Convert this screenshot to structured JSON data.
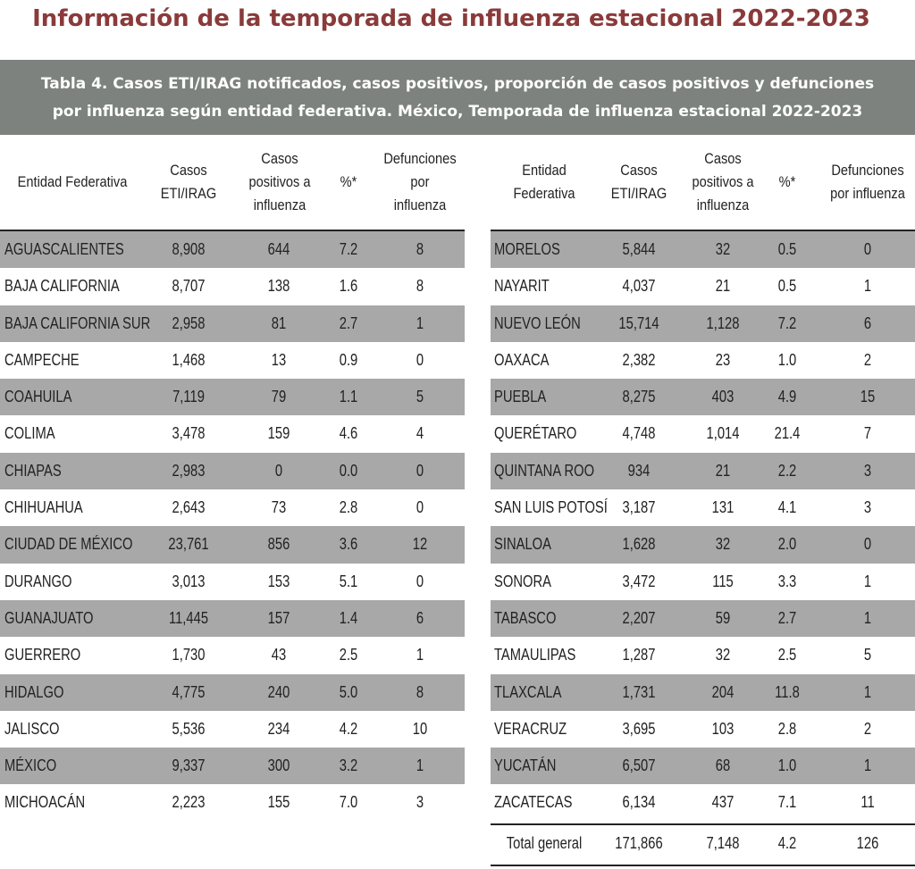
{
  "page_title": "Información de la temporada de influenza estacional 2022-2023",
  "table_caption": {
    "line1": "Tabla 4. Casos ETI/IRAG notificados, casos positivos, proporción de casos positivos  y defunciones",
    "line2": "por influenza según entidad federativa. México, Temporada de influenza estacional 2022-2023"
  },
  "left_headers": {
    "entidad": "Entidad Federativa",
    "casos": "Casos ETI/IRAG",
    "positivos": "Casos positivos a influenza",
    "pct": "%*",
    "defunciones": "Defunciones por influenza"
  },
  "right_headers": {
    "entidad": "Entidad Federativa",
    "casos": "Casos ETI/IRAG",
    "positivos": "Casos positivos a influenza",
    "pct": "%*",
    "defunciones": "Defunciones por influenza"
  },
  "left_rows": [
    {
      "entidad": "AGUASCALIENTES",
      "casos": "8,908",
      "positivos": "644",
      "pct": "7.2",
      "defunciones": "8"
    },
    {
      "entidad": "BAJA CALIFORNIA",
      "casos": "8,707",
      "positivos": "138",
      "pct": "1.6",
      "defunciones": "8"
    },
    {
      "entidad": "BAJA CALIFORNIA SUR",
      "casos": "2,958",
      "positivos": "81",
      "pct": "2.7",
      "defunciones": "1"
    },
    {
      "entidad": "CAMPECHE",
      "casos": "1,468",
      "positivos": "13",
      "pct": "0.9",
      "defunciones": "0"
    },
    {
      "entidad": "COAHUILA",
      "casos": "7,119",
      "positivos": "79",
      "pct": "1.1",
      "defunciones": "5"
    },
    {
      "entidad": "COLIMA",
      "casos": "3,478",
      "positivos": "159",
      "pct": "4.6",
      "defunciones": "4"
    },
    {
      "entidad": "CHIAPAS",
      "casos": "2,983",
      "positivos": "0",
      "pct": "0.0",
      "defunciones": "0"
    },
    {
      "entidad": "CHIHUAHUA",
      "casos": "2,643",
      "positivos": "73",
      "pct": "2.8",
      "defunciones": "0"
    },
    {
      "entidad": "CIUDAD DE MÉXICO",
      "casos": "23,761",
      "positivos": "856",
      "pct": "3.6",
      "defunciones": "12"
    },
    {
      "entidad": "DURANGO",
      "casos": "3,013",
      "positivos": "153",
      "pct": "5.1",
      "defunciones": "0"
    },
    {
      "entidad": "GUANAJUATO",
      "casos": "11,445",
      "positivos": "157",
      "pct": "1.4",
      "defunciones": "6"
    },
    {
      "entidad": "GUERRERO",
      "casos": "1,730",
      "positivos": "43",
      "pct": "2.5",
      "defunciones": "1"
    },
    {
      "entidad": "HIDALGO",
      "casos": "4,775",
      "positivos": "240",
      "pct": "5.0",
      "defunciones": "8"
    },
    {
      "entidad": "JALISCO",
      "casos": "5,536",
      "positivos": "234",
      "pct": "4.2",
      "defunciones": "10"
    },
    {
      "entidad": "MÉXICO",
      "casos": "9,337",
      "positivos": "300",
      "pct": "3.2",
      "defunciones": "1"
    },
    {
      "entidad": "MICHOACÁN",
      "casos": "2,223",
      "positivos": "155",
      "pct": "7.0",
      "defunciones": "3"
    }
  ],
  "right_rows": [
    {
      "entidad": "MORELOS",
      "casos": "5,844",
      "positivos": "32",
      "pct": "0.5",
      "defunciones": "0"
    },
    {
      "entidad": "NAYARIT",
      "casos": "4,037",
      "positivos": "21",
      "pct": "0.5",
      "defunciones": "1"
    },
    {
      "entidad": "NUEVO LEÓN",
      "casos": "15,714",
      "positivos": "1,128",
      "pct": "7.2",
      "defunciones": "6"
    },
    {
      "entidad": "OAXACA",
      "casos": "2,382",
      "positivos": "23",
      "pct": "1.0",
      "defunciones": "2"
    },
    {
      "entidad": "PUEBLA",
      "casos": "8,275",
      "positivos": "403",
      "pct": "4.9",
      "defunciones": "15"
    },
    {
      "entidad": "QUERÉTARO",
      "casos": "4,748",
      "positivos": "1,014",
      "pct": "21.4",
      "defunciones": "7"
    },
    {
      "entidad": "QUINTANA ROO",
      "casos": "934",
      "positivos": "21",
      "pct": "2.2",
      "defunciones": "3"
    },
    {
      "entidad": "SAN LUIS POTOSÍ",
      "casos": "3,187",
      "positivos": "131",
      "pct": "4.1",
      "defunciones": "3"
    },
    {
      "entidad": "SINALOA",
      "casos": "1,628",
      "positivos": "32",
      "pct": "2.0",
      "defunciones": "0"
    },
    {
      "entidad": "SONORA",
      "casos": "3,472",
      "positivos": "115",
      "pct": "3.3",
      "defunciones": "1"
    },
    {
      "entidad": "TABASCO",
      "casos": "2,207",
      "positivos": "59",
      "pct": "2.7",
      "defunciones": "1"
    },
    {
      "entidad": "TAMAULIPAS",
      "casos": "1,287",
      "positivos": "32",
      "pct": "2.5",
      "defunciones": "5"
    },
    {
      "entidad": "TLAXCALA",
      "casos": "1,731",
      "positivos": "204",
      "pct": "11.8",
      "defunciones": "1"
    },
    {
      "entidad": "VERACRUZ",
      "casos": "3,695",
      "positivos": "103",
      "pct": "2.8",
      "defunciones": "2"
    },
    {
      "entidad": "YUCATÁN",
      "casos": "6,507",
      "positivos": "68",
      "pct": "1.0",
      "defunciones": "1"
    },
    {
      "entidad": "ZACATECAS",
      "casos": "6,134",
      "positivos": "437",
      "pct": "7.1",
      "defunciones": "11"
    }
  ],
  "total_row": {
    "entidad": "Total general",
    "casos": "171,866",
    "positivos": "7,148",
    "pct": "4.2",
    "defunciones": "126"
  }
}
